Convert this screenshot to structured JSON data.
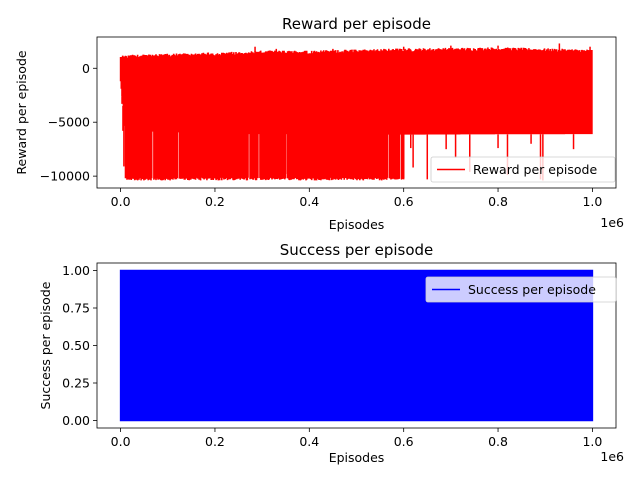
{
  "chart_data": [
    {
      "type": "line",
      "title": "Reward per episode",
      "xlabel": "Episodes",
      "ylabel": "Reward per episode",
      "x_offset_label": "1e6",
      "xlim": [
        -50000,
        1050000
      ],
      "ylim": [
        -11100,
        2900
      ],
      "xticks": [
        0,
        200000,
        400000,
        600000,
        800000,
        1000000
      ],
      "xtick_labels": [
        "0.0",
        "0.2",
        "0.4",
        "0.6",
        "0.8",
        "1.0"
      ],
      "yticks": [
        -10000,
        -5000,
        0
      ],
      "ytick_labels": [
        "−10000",
        "−5000",
        "0"
      ],
      "grid": false,
      "legend_position": "lower-right",
      "series": [
        {
          "name": "Reward per episode",
          "color": "#ff0000",
          "x_range": [
            0,
            1000000
          ],
          "upper_envelope": [
            [
              0,
              1000
            ],
            [
              20000,
              1100
            ],
            [
              100000,
              1200
            ],
            [
              250000,
              1400
            ],
            [
              300000,
              1500
            ],
            [
              400000,
              1500
            ],
            [
              500000,
              1600
            ],
            [
              600000,
              1700
            ],
            [
              800000,
              1800
            ],
            [
              1000000,
              1600
            ]
          ],
          "upper_peaks": [
            [
              285000,
              2000
            ],
            [
              330000,
              1800
            ],
            [
              450000,
              1800
            ],
            [
              600000,
              2000
            ],
            [
              700000,
              2100
            ],
            [
              800000,
              2100
            ],
            [
              930000,
              2300
            ],
            [
              995000,
              2000
            ]
          ],
          "band_floor": [
            [
              0,
              -1200
            ],
            [
              10000,
              -5800
            ],
            [
              250000,
              -6100
            ],
            [
              600000,
              -6150
            ],
            [
              1000000,
              -6100
            ]
          ],
          "deep_floor_range": [
            10000,
            600000
          ],
          "deep_floor_value": -10400,
          "outliers": [
            [
              3000,
              -3300
            ],
            [
              5000,
              -5800
            ],
            [
              7000,
              -9100
            ],
            [
              300000,
              -7800
            ],
            [
              320000,
              -9000
            ],
            [
              350000,
              -9800
            ],
            [
              375000,
              -7300
            ],
            [
              400000,
              -10000
            ],
            [
              420000,
              -8300
            ],
            [
              450000,
              -9500
            ],
            [
              470000,
              -7500
            ],
            [
              500000,
              -8800
            ],
            [
              515000,
              -10200
            ],
            [
              530000,
              -7300
            ],
            [
              560000,
              -9500
            ],
            [
              585000,
              -8000
            ],
            [
              600000,
              -10300
            ],
            [
              615000,
              -7400
            ],
            [
              620000,
              -9200
            ],
            [
              650000,
              -10300
            ],
            [
              690000,
              -7500
            ],
            [
              710000,
              -8300
            ],
            [
              740000,
              -9600
            ],
            [
              800000,
              -7400
            ],
            [
              820000,
              -9900
            ],
            [
              870000,
              -7000
            ],
            [
              890000,
              -10300
            ],
            [
              895000,
              -10400
            ],
            [
              960000,
              -7500
            ]
          ]
        }
      ]
    },
    {
      "type": "line",
      "title": "Success per episode",
      "xlabel": "Episodes",
      "ylabel": "Success per episode",
      "x_offset_label": "1e6",
      "xlim": [
        -50000,
        1050000
      ],
      "ylim": [
        -0.05,
        1.05
      ],
      "xticks": [
        0,
        200000,
        400000,
        600000,
        800000,
        1000000
      ],
      "xtick_labels": [
        "0.0",
        "0.2",
        "0.4",
        "0.6",
        "0.8",
        "1.0"
      ],
      "yticks": [
        0,
        0.25,
        0.5,
        0.75,
        1
      ],
      "ytick_labels": [
        "0.00",
        "0.25",
        "0.50",
        "0.75",
        "1.00"
      ],
      "grid": false,
      "legend_position": "upper-right",
      "series": [
        {
          "name": "Success per episode",
          "color": "#0000ff",
          "x_range": [
            0,
            1000000
          ],
          "values_oscillate_between": [
            0,
            1
          ]
        }
      ]
    }
  ]
}
